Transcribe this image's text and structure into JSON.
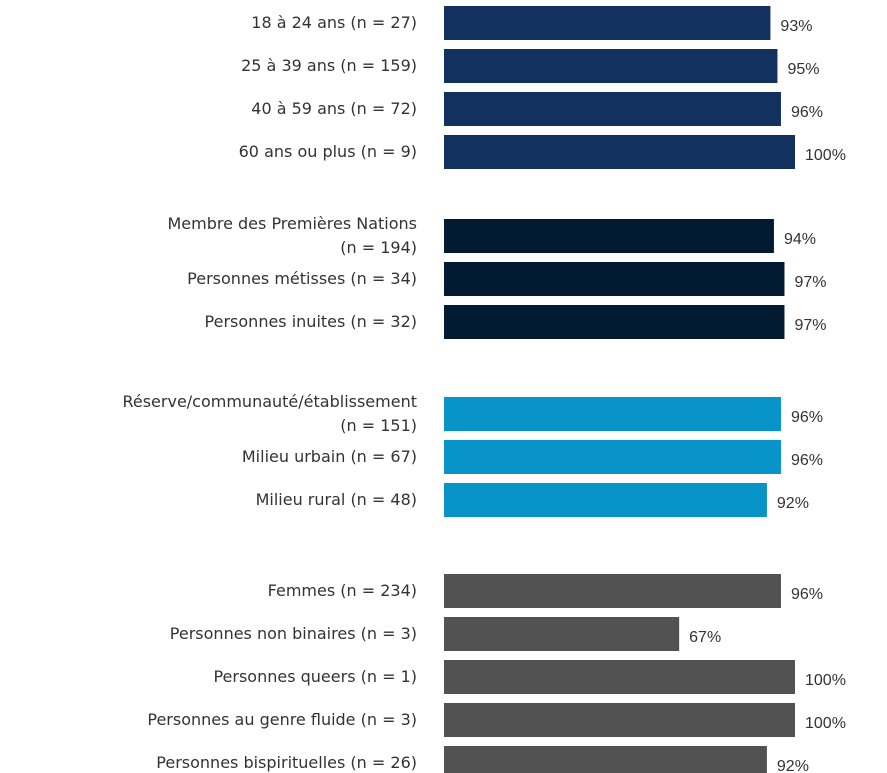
{
  "chart_data": {
    "type": "bar",
    "orientation": "horizontal",
    "xlim": [
      0,
      100
    ],
    "groups": [
      {
        "color": "#13315f",
        "categories": [
          "18 à 24 ans (n = 27)",
          "25 à 39 ans (n = 159)",
          "40 à 59 ans (n = 72)",
          "60 ans ou plus (n = 9)"
        ],
        "values": [
          93,
          95,
          96,
          100
        ],
        "value_labels": [
          "93%",
          "95%",
          "96%",
          "100%"
        ]
      },
      {
        "color": "#031a33",
        "categories": [
          "Membre des Premières Nations\n(n = 194)",
          "Personnes métisses (n = 34)",
          "Personnes inuites (n = 32)"
        ],
        "values": [
          94,
          97,
          97
        ],
        "value_labels": [
          "94%",
          "97%",
          "97%"
        ]
      },
      {
        "color": "#0893c9",
        "categories": [
          "Réserve/communauté/établissement\n(n = 151)",
          "Milieu urbain (n = 67)",
          "Milieu rural (n = 48)"
        ],
        "values": [
          96,
          96,
          92
        ],
        "value_labels": [
          "96%",
          "96%",
          "92%"
        ]
      },
      {
        "color": "#525252",
        "categories": [
          "Femmes (n = 234)",
          "Personnes non binaires (n = 3)",
          "Personnes queers (n = 1)",
          "Personnes au genre fluide (n = 3)",
          "Personnes bispirituelles (n = 26)"
        ],
        "values": [
          96,
          67,
          100,
          100,
          92
        ],
        "value_labels": [
          "96%",
          "67%",
          "100%",
          "100%",
          "92%"
        ]
      }
    ]
  }
}
